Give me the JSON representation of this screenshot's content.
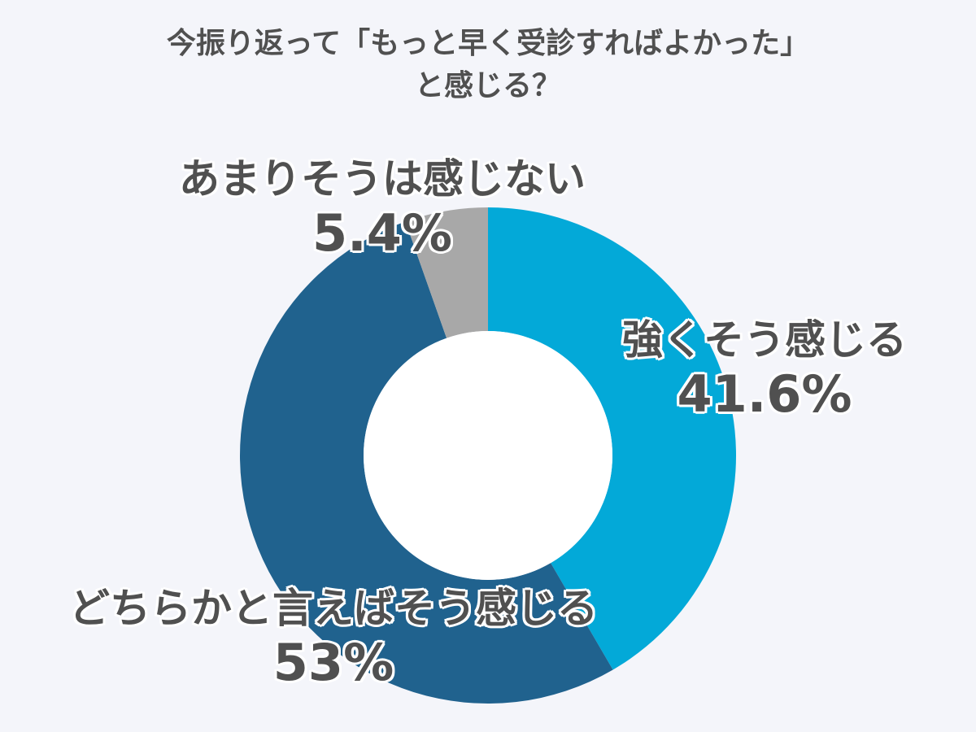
{
  "title": {
    "line1": "今振り返って「もっと早く受診すればよかった」",
    "line2": "と感じる？"
  },
  "chart_data": {
    "type": "pie",
    "donut": true,
    "title": "今振り返って「もっと早く受診すればよかった」と感じる？",
    "slices": [
      {
        "label": "強くそう感じる",
        "value": 41.6,
        "value_label": "41.6%",
        "color": "#03a9d8"
      },
      {
        "label": "どちらかと言えばそう感じる",
        "value": 53,
        "value_label": "53%",
        "color": "#20628e"
      },
      {
        "label": "あまりそうは感じない",
        "value": 5.4,
        "value_label": "5.4%",
        "color": "#a8a8a8"
      }
    ],
    "start_angle": "12 o'clock",
    "direction": "clockwise",
    "legend": "none"
  }
}
